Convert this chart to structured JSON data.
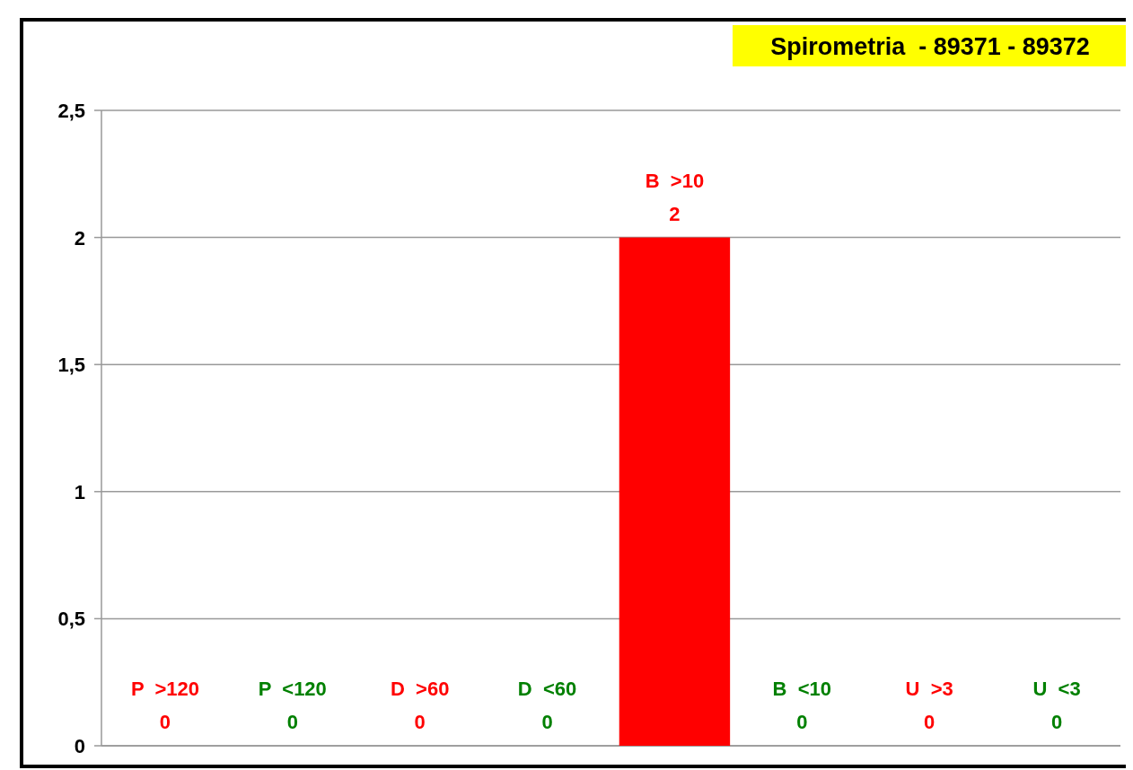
{
  "chart_data": {
    "type": "bar",
    "title": "Spirometria  - 89371 - 89372",
    "categories": [
      "P  >120",
      "P  <120",
      "D  >60",
      "D  <60",
      "B  >10",
      "B  <10",
      "U  >3",
      "U  <3"
    ],
    "values": [
      0,
      0,
      0,
      0,
      2,
      0,
      0,
      0
    ],
    "colors": [
      "#ff0000",
      "#008000",
      "#ff0000",
      "#008000",
      "#ff0000",
      "#008000",
      "#ff0000",
      "#008000"
    ],
    "ylim": [
      0,
      2.5
    ],
    "yticks": [
      0,
      {
        "value": 0.5,
        "label": "0,5"
      },
      1,
      {
        "value": 1.5,
        "label": "1,5"
      },
      2,
      {
        "value": 2.5,
        "label": "2,5"
      }
    ],
    "grid": "y",
    "data_labels": true
  }
}
